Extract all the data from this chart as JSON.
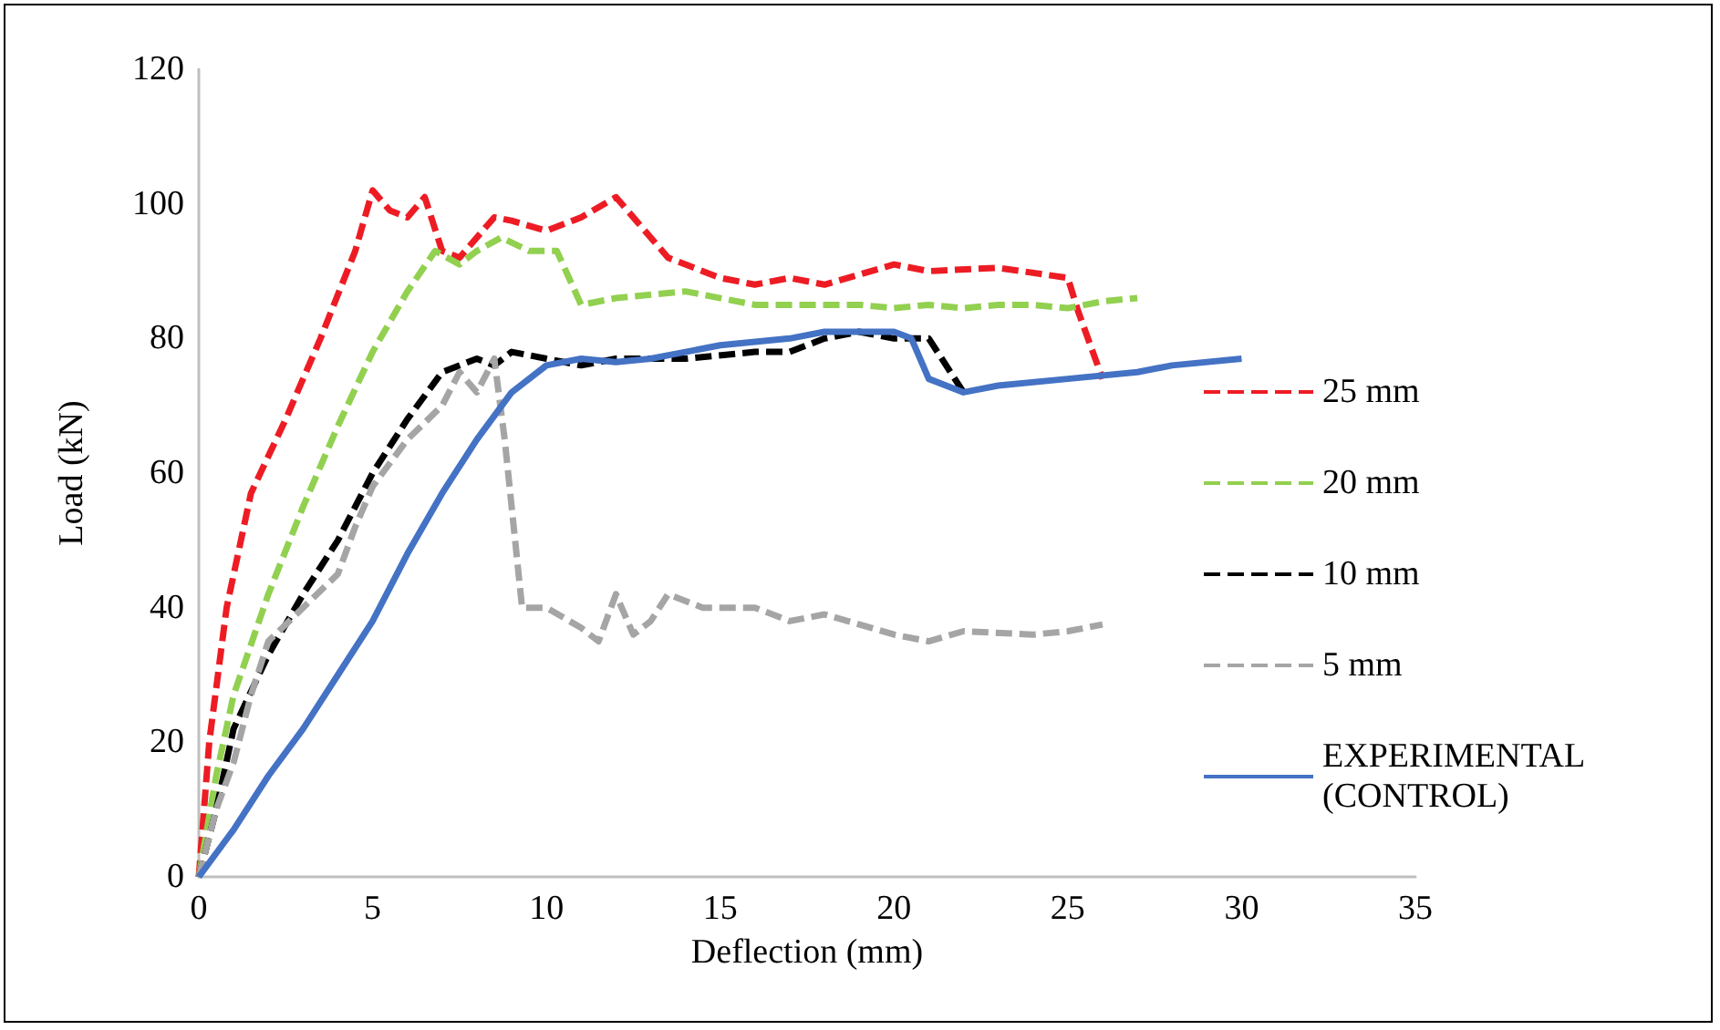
{
  "chart_data": {
    "type": "line",
    "xlabel": "Deflection (mm)",
    "ylabel": "Load (kN)",
    "xlim": [
      0,
      35
    ],
    "xticks": [
      0,
      5,
      10,
      15,
      20,
      25,
      30,
      35
    ],
    "ylim": [
      0,
      120
    ],
    "yticks": [
      0,
      20,
      40,
      60,
      80,
      100,
      120
    ],
    "grid": false,
    "legend": "right",
    "marker": "none",
    "series": [
      {
        "name": "25 mm",
        "color": "#ed1c24",
        "line_style": "dashed",
        "x": [
          0,
          0.3,
          0.8,
          1.5,
          2.5,
          3.5,
          4.5,
          5,
          5.5,
          6,
          6.5,
          7,
          7.5,
          8.5,
          9,
          10,
          11,
          12,
          13.5,
          15,
          16,
          17,
          18,
          19,
          20,
          21,
          23,
          25,
          25.3,
          26
        ],
        "values": [
          0,
          20,
          40,
          57,
          68,
          80,
          93,
          102,
          99,
          98,
          101,
          93,
          92,
          98,
          97.5,
          96,
          98,
          101,
          92,
          89,
          88,
          89,
          88,
          89.5,
          91,
          90,
          90.5,
          89,
          84,
          74
        ]
      },
      {
        "name": "20 mm",
        "color": "#92d050",
        "line_style": "dashed",
        "x": [
          0,
          0.5,
          1,
          2,
          3,
          4,
          5,
          6,
          6.8,
          7.5,
          8,
          8.7,
          9.5,
          10.3,
          11,
          12,
          14,
          16,
          17,
          19,
          20,
          21,
          22,
          23,
          24,
          25,
          26,
          27
        ],
        "values": [
          0,
          15,
          27,
          42,
          55,
          67,
          78,
          87,
          93,
          91,
          93,
          95,
          93,
          93,
          85,
          86,
          87,
          85,
          85,
          85,
          84.5,
          85,
          84.5,
          85,
          85,
          84.5,
          85.5,
          86
        ]
      },
      {
        "name": "10 mm",
        "color": "#000000",
        "line_style": "dashed",
        "x": [
          0,
          0.5,
          1,
          2,
          3,
          4,
          5,
          6,
          7,
          8,
          8.5,
          9,
          10,
          11,
          12,
          14,
          16,
          17,
          18,
          19,
          20,
          21,
          22
        ],
        "values": [
          0,
          10,
          22,
          33,
          42,
          50,
          60,
          68,
          75,
          77,
          76,
          78,
          77,
          76,
          77,
          77,
          78,
          78,
          80,
          81,
          80,
          80,
          72
        ]
      },
      {
        "name": "5 mm",
        "color": "#a5a5a5",
        "line_style": "dashed",
        "x": [
          0,
          0.5,
          1,
          1.5,
          2,
          3,
          4,
          4.5,
          5,
          6,
          7,
          7.5,
          8,
          8.5,
          8.8,
          9,
          9.3,
          10,
          11,
          11.5,
          12,
          12.5,
          13,
          13.5,
          14.5,
          16,
          17,
          18,
          20,
          21,
          22,
          24,
          25,
          26
        ],
        "values": [
          0,
          10,
          17,
          27,
          35,
          40,
          45,
          52,
          58,
          65,
          70,
          75,
          72,
          77,
          65,
          55,
          40,
          40,
          37,
          35,
          42,
          36,
          38,
          42,
          40,
          40,
          38,
          39,
          36,
          35,
          36.5,
          36,
          36.5,
          37.5
        ]
      },
      {
        "name": "EXPERIMENTAL (CONTROL)",
        "color": "#4472c4",
        "line_style": "solid",
        "x": [
          0,
          1,
          2,
          3,
          4,
          5,
          6,
          7,
          8,
          9,
          10,
          11,
          12,
          13,
          14,
          15,
          16,
          17,
          18,
          19,
          20,
          20.5,
          21,
          22,
          23,
          25,
          27,
          28,
          30
        ],
        "values": [
          0,
          7,
          15,
          22,
          30,
          38,
          48,
          57,
          65,
          72,
          76,
          77,
          76.5,
          77,
          78,
          79,
          79.5,
          80,
          81,
          81,
          81,
          80,
          74,
          72,
          73,
          74,
          75,
          76,
          77
        ]
      }
    ]
  }
}
